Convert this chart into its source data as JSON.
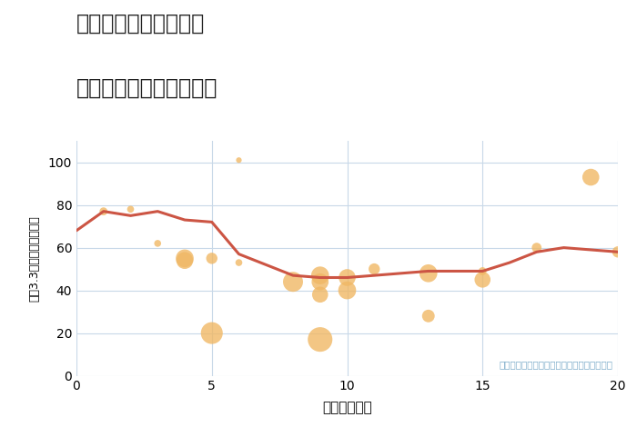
{
  "title_line1": "兵庫県姫路市青山北の",
  "title_line2": "駅距離別中古戸建て価格",
  "xlabel": "駅距離（分）",
  "ylabel": "坪（3.3㎡）単価（万円）",
  "background_color": "#ffffff",
  "plot_bg_color": "#ffffff",
  "bubble_color": "#f0b865",
  "bubble_alpha": 0.8,
  "line_color": "#cc5544",
  "line_width": 2.2,
  "grid_color": "#c8d8e8",
  "annotation_color": "#7aaac8",
  "annotation_text": "円の大きさは、取引のあった物件面積を示す",
  "xlim": [
    0,
    20
  ],
  "ylim": [
    0,
    110
  ],
  "xticks": [
    0,
    5,
    10,
    15,
    20
  ],
  "yticks": [
    0,
    20,
    40,
    60,
    80,
    100
  ],
  "scatter_x": [
    1,
    2,
    3,
    4,
    4,
    5,
    5,
    6,
    6,
    8,
    9,
    9,
    9,
    9,
    10,
    10,
    11,
    13,
    13,
    15,
    15,
    17,
    19,
    20
  ],
  "scatter_y": [
    77,
    78,
    62,
    55,
    54,
    55,
    20,
    101,
    53,
    44,
    47,
    38,
    44,
    17,
    46,
    40,
    50,
    48,
    28,
    49,
    45,
    60,
    93,
    58
  ],
  "scatter_size": [
    40,
    30,
    30,
    200,
    180,
    80,
    300,
    20,
    30,
    250,
    200,
    160,
    180,
    380,
    180,
    200,
    80,
    200,
    100,
    40,
    160,
    60,
    180,
    80
  ],
  "line_x": [
    0,
    1,
    2,
    3,
    4,
    5,
    6,
    7,
    8,
    9,
    10,
    11,
    12,
    13,
    14,
    15,
    16,
    17,
    18,
    19,
    20
  ],
  "line_y": [
    68,
    77,
    75,
    77,
    73,
    72,
    57,
    52,
    47,
    46,
    46,
    47,
    48,
    49,
    49,
    49,
    53,
    58,
    60,
    59,
    58
  ]
}
